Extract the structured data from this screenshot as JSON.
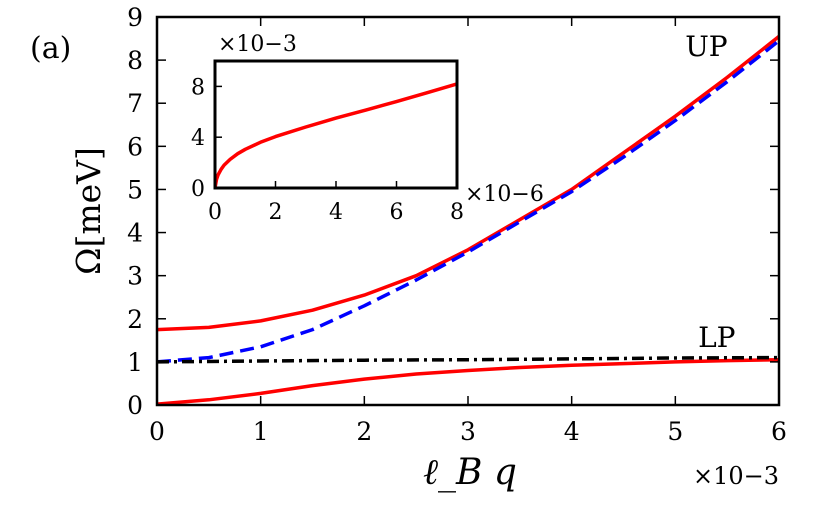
{
  "panel_label": "(a)",
  "chart_data": [
    {
      "type": "line",
      "ylabel": "Ω[meV]",
      "xlabel": "ℓ_B q",
      "x_multiplier": "×10−3",
      "xlim": [
        0,
        6
      ],
      "ylim": [
        0,
        9
      ],
      "xticks": [
        "0",
        "1",
        "2",
        "3",
        "4",
        "5",
        "6"
      ],
      "yticks": [
        "0",
        "1",
        "2",
        "3",
        "4",
        "5",
        "6",
        "7",
        "8",
        "9"
      ],
      "grid": false,
      "annotations": [
        {
          "text": "UP",
          "x": 5.3,
          "y": 8.1,
          "color": "#ff0000"
        },
        {
          "text": "LP",
          "x": 5.4,
          "y": 1.35,
          "color": "#ff0000"
        }
      ],
      "series": [
        {
          "color": "#ff0000",
          "style": "solid",
          "x": [
            0,
            0.5,
            1,
            1.5,
            2,
            2.5,
            3,
            3.5,
            4,
            4.5,
            5,
            5.5,
            6
          ],
          "y": [
            1.75,
            1.8,
            1.95,
            2.2,
            2.55,
            3.0,
            3.6,
            4.3,
            5.0,
            5.85,
            6.7,
            7.6,
            8.55
          ]
        },
        {
          "color": "#0000ff",
          "style": "dashed",
          "x": [
            0,
            0.5,
            1,
            1.5,
            2,
            2.5,
            3,
            3.5,
            4,
            4.5,
            5,
            5.5,
            6
          ],
          "y": [
            1.0,
            1.1,
            1.35,
            1.75,
            2.3,
            2.9,
            3.55,
            4.25,
            4.95,
            5.75,
            6.6,
            7.5,
            8.45
          ]
        },
        {
          "color": "#ff0000",
          "style": "solid",
          "x": [
            0,
            0.5,
            1,
            1.5,
            2,
            2.5,
            3,
            3.5,
            4,
            4.5,
            5,
            5.5,
            6
          ],
          "y": [
            0.02,
            0.12,
            0.27,
            0.45,
            0.6,
            0.72,
            0.8,
            0.87,
            0.92,
            0.96,
            1.0,
            1.03,
            1.05
          ]
        },
        {
          "color": "#000000",
          "style": "dashdot",
          "x": [
            0,
            1,
            2,
            3,
            4,
            5,
            6
          ],
          "y": [
            1.0,
            1.02,
            1.04,
            1.05,
            1.07,
            1.09,
            1.1
          ]
        }
      ]
    },
    {
      "type": "line",
      "y_multiplier": "×10−3",
      "x_multiplier": "×10−6",
      "xlim": [
        0,
        8
      ],
      "ylim": [
        0,
        10
      ],
      "xticks": [
        "0",
        "2",
        "4",
        "6",
        "8"
      ],
      "yticks": [
        "0",
        "4",
        "8"
      ],
      "grid": false,
      "series": [
        {
          "color": "#ff0000",
          "style": "solid",
          "x": [
            0,
            0.05,
            0.1,
            0.2,
            0.3,
            0.5,
            0.75,
            1,
            1.5,
            2,
            3,
            4,
            5,
            6,
            7,
            8
          ],
          "y": [
            0,
            0.68,
            1.02,
            1.47,
            1.8,
            2.25,
            2.7,
            3.05,
            3.6,
            4.05,
            4.8,
            5.5,
            6.15,
            6.8,
            7.5,
            8.2
          ]
        }
      ]
    }
  ]
}
